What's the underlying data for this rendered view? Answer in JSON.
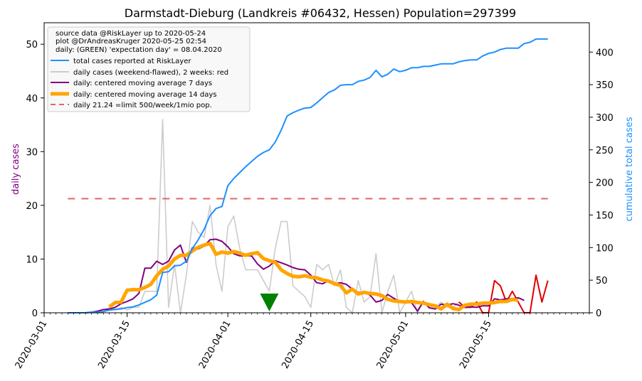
{
  "chart_data": {
    "type": "line",
    "title": "Darmstadt-Dieburg (Landkreis #06432, Hessen) Population=297399",
    "ylabel_left": "daily cases",
    "ylabel_right": "cumulative total cases",
    "xlim": [
      "2020-03-01",
      "2020-06-01"
    ],
    "ylim_left": [
      0,
      54
    ],
    "ylim_right": [
      0,
      445
    ],
    "x_ticks": [
      "2020-03-01",
      "2020-03-15",
      "2020-04-01",
      "2020-04-15",
      "2020-05-01",
      "2020-05-15"
    ],
    "y_ticks_left": [
      0,
      10,
      20,
      30,
      40,
      50
    ],
    "y_ticks_right": [
      0,
      50,
      100,
      150,
      200,
      250,
      300,
      350,
      400
    ],
    "legend_position": "top-left",
    "legend_header": [
      "source data @RiskLayer up to 2020-05-24",
      "plot @DrAndreasKruger 2020-05-25 02:54",
      "daily: (GREEN) 'expectation day' = 08.04.2020"
    ],
    "expectation_day": "2020-04-08",
    "limit_value": 21.24,
    "colors": {
      "total": "#1e90ff",
      "daily": "#cccccc",
      "daily_recent": "#e00000",
      "ma7": "#800080",
      "ma14": "#ffa500",
      "limit": "#e06666",
      "marker": "#008000"
    },
    "series": [
      {
        "name": "total cases reported at RiskLayer",
        "axis": "right",
        "x": [
          "2020-03-05",
          "2020-03-06",
          "2020-03-07",
          "2020-03-08",
          "2020-03-09",
          "2020-03-10",
          "2020-03-11",
          "2020-03-12",
          "2020-03-13",
          "2020-03-14",
          "2020-03-15",
          "2020-03-16",
          "2020-03-17",
          "2020-03-18",
          "2020-03-19",
          "2020-03-20",
          "2020-03-21",
          "2020-03-22",
          "2020-03-23",
          "2020-03-24",
          "2020-03-25",
          "2020-03-26",
          "2020-03-27",
          "2020-03-28",
          "2020-03-29",
          "2020-03-30",
          "2020-03-31",
          "2020-04-01",
          "2020-04-02",
          "2020-04-03",
          "2020-04-04",
          "2020-04-05",
          "2020-04-06",
          "2020-04-07",
          "2020-04-08",
          "2020-04-09",
          "2020-04-10",
          "2020-04-11",
          "2020-04-12",
          "2020-04-13",
          "2020-04-14",
          "2020-04-15",
          "2020-04-16",
          "2020-04-17",
          "2020-04-18",
          "2020-04-19",
          "2020-04-20",
          "2020-04-21",
          "2020-04-22",
          "2020-04-23",
          "2020-04-24",
          "2020-04-25",
          "2020-04-26",
          "2020-04-27",
          "2020-04-28",
          "2020-04-29",
          "2020-04-30",
          "2020-05-01",
          "2020-05-02",
          "2020-05-03",
          "2020-05-04",
          "2020-05-05",
          "2020-05-06",
          "2020-05-07",
          "2020-05-08",
          "2020-05-09",
          "2020-05-10",
          "2020-05-11",
          "2020-05-12",
          "2020-05-13",
          "2020-05-14",
          "2020-05-15",
          "2020-05-16",
          "2020-05-17",
          "2020-05-18",
          "2020-05-19",
          "2020-05-20",
          "2020-05-21",
          "2020-05-22",
          "2020-05-23",
          "2020-05-24",
          "2020-05-25"
        ],
        "values": [
          0,
          0,
          0,
          0,
          1,
          1,
          2,
          4,
          5,
          6,
          8,
          9,
          12,
          16,
          20,
          27,
          62,
          63,
          72,
          73,
          79,
          98,
          112,
          128,
          149,
          160,
          163,
          195,
          206,
          215,
          224,
          232,
          240,
          246,
          250,
          262,
          280,
          302,
          307,
          311,
          314,
          315,
          322,
          330,
          338,
          342,
          349,
          350,
          350,
          355,
          357,
          361,
          372,
          362,
          366,
          374,
          370,
          372,
          376,
          376,
          378,
          378,
          380,
          382,
          382,
          382,
          385,
          387,
          388,
          388,
          394,
          398,
          400,
          404,
          406,
          406,
          406,
          413,
          415,
          420,
          420,
          420
        ]
      },
      {
        "name": "daily cases (weekend-flawed), 2 weeks: red",
        "axis": "left",
        "x": [
          "2020-03-05",
          "2020-03-06",
          "2020-03-07",
          "2020-03-08",
          "2020-03-09",
          "2020-03-10",
          "2020-03-11",
          "2020-03-12",
          "2020-03-13",
          "2020-03-14",
          "2020-03-15",
          "2020-03-16",
          "2020-03-17",
          "2020-03-18",
          "2020-03-19",
          "2020-03-20",
          "2020-03-21",
          "2020-03-22",
          "2020-03-23",
          "2020-03-24",
          "2020-03-25",
          "2020-03-26",
          "2020-03-27",
          "2020-03-28",
          "2020-03-29",
          "2020-03-30",
          "2020-03-31",
          "2020-04-01",
          "2020-04-02",
          "2020-04-03",
          "2020-04-04",
          "2020-04-05",
          "2020-04-06",
          "2020-04-07",
          "2020-04-08",
          "2020-04-09",
          "2020-04-10",
          "2020-04-11",
          "2020-04-12",
          "2020-04-13",
          "2020-04-14",
          "2020-04-15",
          "2020-04-16",
          "2020-04-17",
          "2020-04-18",
          "2020-04-19",
          "2020-04-20",
          "2020-04-21",
          "2020-04-22",
          "2020-04-23",
          "2020-04-24",
          "2020-04-25",
          "2020-04-26",
          "2020-04-27",
          "2020-04-28",
          "2020-04-29",
          "2020-04-30",
          "2020-05-01",
          "2020-05-02",
          "2020-05-03",
          "2020-05-04",
          "2020-05-05",
          "2020-05-06",
          "2020-05-07",
          "2020-05-08",
          "2020-05-09",
          "2020-05-10"
        ],
        "values": [
          0,
          0,
          0,
          0,
          0,
          0,
          0.2,
          1,
          0.5,
          1,
          0.5,
          1,
          1,
          4,
          4,
          4,
          36,
          1,
          9,
          0,
          7,
          17,
          15,
          14,
          20,
          9,
          4,
          16,
          18,
          12,
          8,
          8,
          8,
          6,
          4,
          12,
          17,
          17,
          5,
          4,
          3,
          1,
          9,
          8,
          9,
          5,
          8,
          1,
          0,
          6,
          2,
          3,
          11,
          0,
          4,
          7,
          0,
          2,
          4,
          0,
          2,
          1,
          1,
          2,
          1,
          1,
          2
        ]
      },
      {
        "name": "daily cases, last 2 weeks",
        "axis": "left",
        "x": [
          "2020-05-10",
          "2020-05-11",
          "2020-05-12",
          "2020-05-13",
          "2020-05-14",
          "2020-05-15",
          "2020-05-16",
          "2020-05-17",
          "2020-05-18",
          "2020-05-19",
          "2020-05-20",
          "2020-05-21",
          "2020-05-22",
          "2020-05-23",
          "2020-05-24",
          "2020-05-25"
        ],
        "values": [
          2,
          1,
          1,
          2,
          0,
          0,
          6,
          5,
          2,
          4,
          2,
          0,
          0,
          7,
          2,
          6
        ]
      },
      {
        "name": "daily: centered moving average 7 days",
        "axis": "left",
        "x": [
          "2020-03-08",
          "2020-03-09",
          "2020-03-10",
          "2020-03-11",
          "2020-03-12",
          "2020-03-13",
          "2020-03-14",
          "2020-03-15",
          "2020-03-16",
          "2020-03-17",
          "2020-03-18",
          "2020-03-19",
          "2020-03-20",
          "2020-03-21",
          "2020-03-22",
          "2020-03-23",
          "2020-03-24",
          "2020-03-25",
          "2020-03-26",
          "2020-03-27",
          "2020-03-28",
          "2020-03-29",
          "2020-03-30",
          "2020-03-31",
          "2020-04-01",
          "2020-04-02",
          "2020-04-03",
          "2020-04-04",
          "2020-04-05",
          "2020-04-06",
          "2020-04-07",
          "2020-04-08",
          "2020-04-09",
          "2020-04-10",
          "2020-04-11",
          "2020-04-12",
          "2020-04-13",
          "2020-04-14",
          "2020-04-15",
          "2020-04-16",
          "2020-04-17",
          "2020-04-18",
          "2020-04-19",
          "2020-04-20",
          "2020-04-21",
          "2020-04-22",
          "2020-04-23",
          "2020-04-24",
          "2020-04-25",
          "2020-04-26",
          "2020-04-27",
          "2020-04-28",
          "2020-04-29",
          "2020-04-30",
          "2020-05-01",
          "2020-05-02",
          "2020-05-03",
          "2020-05-04",
          "2020-05-05",
          "2020-05-06",
          "2020-05-07",
          "2020-05-08",
          "2020-05-09",
          "2020-05-10",
          "2020-05-11",
          "2020-05-12",
          "2020-05-13",
          "2020-05-14",
          "2020-05-15",
          "2020-05-16",
          "2020-05-17",
          "2020-05-18",
          "2020-05-19",
          "2020-05-20",
          "2020-05-21"
        ],
        "values": [
          0,
          0.1,
          0.3,
          0.6,
          0.7,
          1,
          1.7,
          2.1,
          2.6,
          3.6,
          8.3,
          8.3,
          9.6,
          9,
          9.6,
          11.7,
          12.6,
          9.4,
          12.1,
          11.9,
          12.4,
          13.6,
          13.7,
          13.3,
          12.3,
          11,
          10.6,
          10.6,
          10.6,
          9.1,
          8.1,
          8.7,
          9.7,
          9.3,
          8.9,
          8.4,
          8.1,
          8,
          7,
          5.6,
          5.4,
          6,
          5.4,
          5.6,
          5.3,
          4.4,
          3.8,
          3.8,
          3.3,
          2,
          2.3,
          3.4,
          2.7,
          2.1,
          2,
          1.9,
          0.3,
          2.1,
          0.9,
          0.7,
          1.6,
          1.4,
          1.7,
          1.4,
          1,
          1.1,
          1,
          1.3,
          1.3,
          2.6,
          2.4,
          2.6,
          2.6,
          2.8,
          2.3
        ]
      },
      {
        "name": "daily: centered moving average 14 days",
        "axis": "left",
        "x": [
          "2020-03-12",
          "2020-03-13",
          "2020-03-14",
          "2020-03-15",
          "2020-03-16",
          "2020-03-17",
          "2020-03-18",
          "2020-03-19",
          "2020-03-20",
          "2020-03-21",
          "2020-03-22",
          "2020-03-23",
          "2020-03-24",
          "2020-03-25",
          "2020-03-26",
          "2020-03-27",
          "2020-03-28",
          "2020-03-29",
          "2020-03-30",
          "2020-03-31",
          "2020-04-01",
          "2020-04-02",
          "2020-04-03",
          "2020-04-04",
          "2020-04-05",
          "2020-04-06",
          "2020-04-07",
          "2020-04-08",
          "2020-04-09",
          "2020-04-10",
          "2020-04-11",
          "2020-04-12",
          "2020-04-13",
          "2020-04-14",
          "2020-04-15",
          "2020-04-16",
          "2020-04-17",
          "2020-04-18",
          "2020-04-19",
          "2020-04-20",
          "2020-04-21",
          "2020-04-22",
          "2020-04-23",
          "2020-04-24",
          "2020-04-25",
          "2020-04-26",
          "2020-04-27",
          "2020-04-28",
          "2020-04-29",
          "2020-04-30",
          "2020-05-01",
          "2020-05-02",
          "2020-05-03",
          "2020-05-04",
          "2020-05-05",
          "2020-05-06",
          "2020-05-07",
          "2020-05-08",
          "2020-05-09",
          "2020-05-10",
          "2020-05-11",
          "2020-05-12",
          "2020-05-13",
          "2020-05-14",
          "2020-05-15",
          "2020-05-16",
          "2020-05-17",
          "2020-05-18",
          "2020-05-19",
          "2020-05-20"
        ],
        "values": [
          1.1,
          1.9,
          2,
          4.2,
          4.3,
          4.3,
          4.7,
          5.3,
          6.9,
          8.1,
          8.7,
          10,
          10.7,
          10.7,
          11.5,
          12.2,
          12.6,
          12.9,
          10.9,
          11.3,
          11.1,
          11.4,
          11.1,
          10.7,
          11,
          11.2,
          10.1,
          9.7,
          9.4,
          8,
          7.3,
          6.8,
          6.7,
          6.9,
          6.6,
          6.5,
          6.1,
          5.9,
          5.4,
          5.1,
          3.7,
          4.4,
          3.5,
          3.8,
          3.6,
          3.5,
          3.2,
          2.5,
          2.2,
          2.1,
          2,
          2.1,
          1.9,
          1.8,
          1.5,
          1.3,
          0.7,
          1.6,
          0.8,
          0.6,
          1.4,
          1.6,
          1.6,
          1.8,
          1.8,
          1.9,
          2.1,
          2.1,
          2.5,
          2.3
        ]
      },
      {
        "name": "daily 21.24 =limit 500/week/1mio pop.",
        "axis": "left",
        "x": [
          "2020-03-05",
          "2020-05-25"
        ],
        "values": [
          21.24,
          21.24
        ]
      }
    ]
  },
  "legend": {
    "items": [
      "total cases reported at RiskLayer",
      "daily cases (weekend-flawed), 2 weeks: red",
      "daily: centered moving average 7 days",
      "daily: centered moving average 14 days",
      "daily 21.24 =limit 500/week/1mio pop."
    ]
  }
}
